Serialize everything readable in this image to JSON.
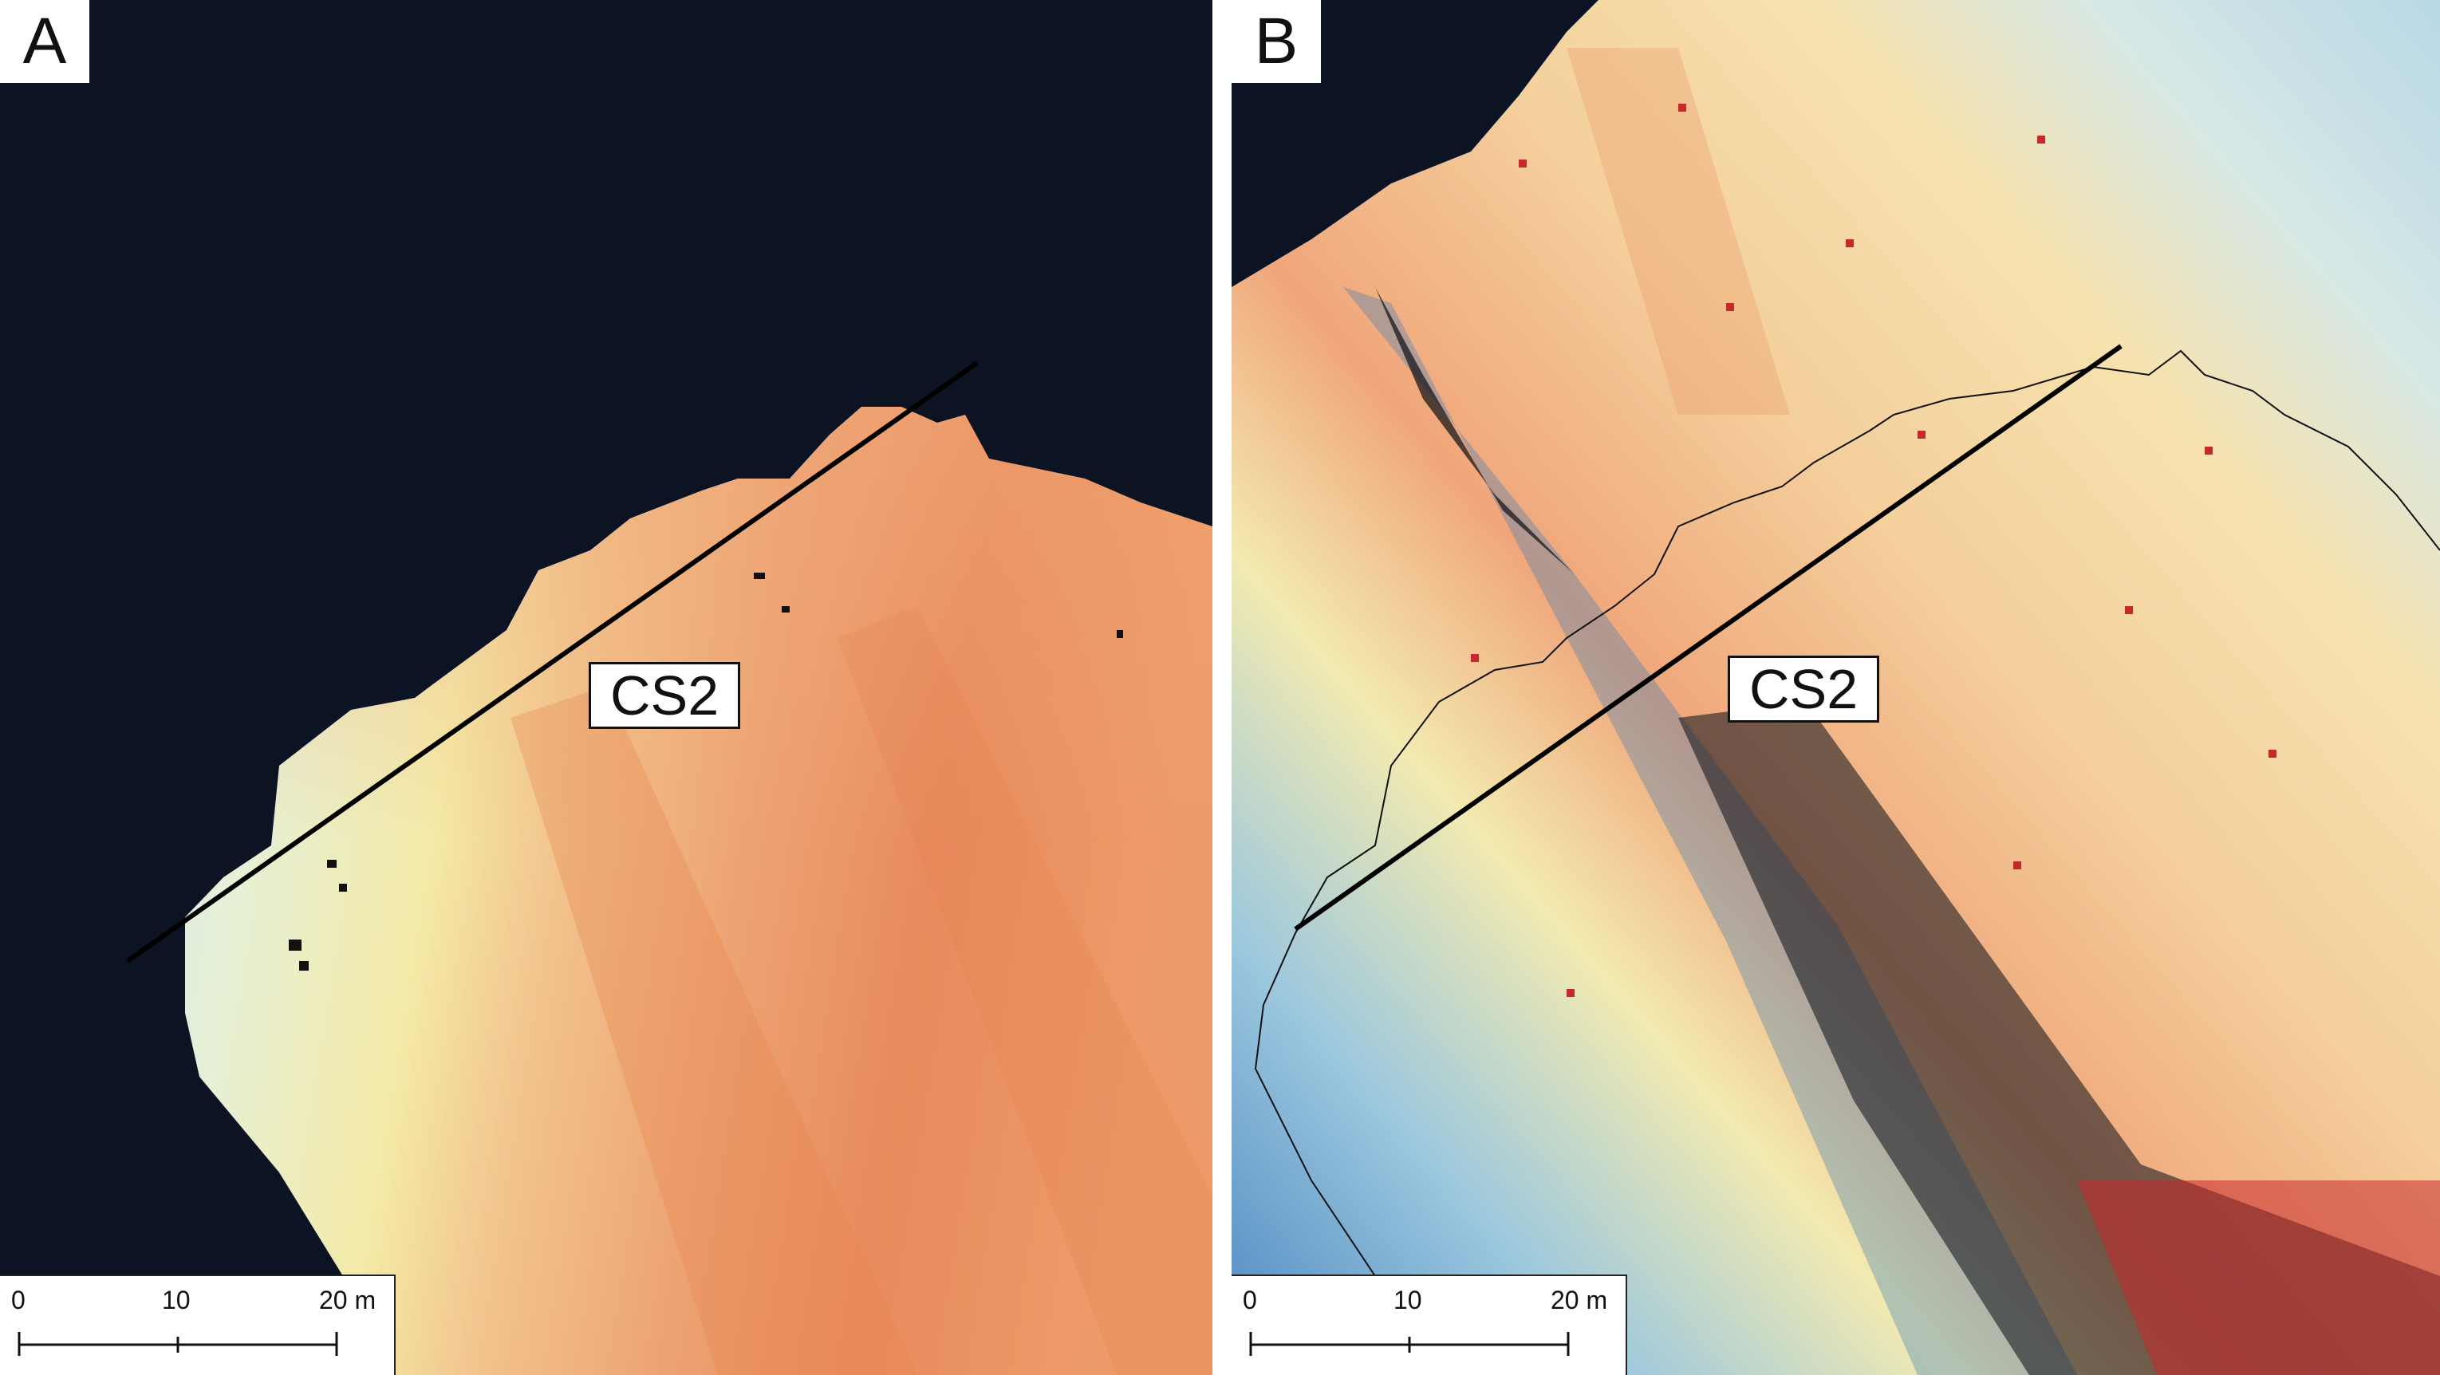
{
  "panels": [
    {
      "letter": "A",
      "cross_section_label": "CS2",
      "scale_bar": {
        "tick_labels": [
          "0",
          "10",
          "20 m"
        ]
      }
    },
    {
      "letter": "B",
      "cross_section_label": "CS2",
      "scale_bar": {
        "tick_labels": [
          "0",
          "10",
          "20 m"
        ]
      }
    }
  ],
  "colors": {
    "background_dark": "#0c1322",
    "high_orange": "#e8895a",
    "mid_peach": "#f3c992",
    "low_pale_yellow": "#f4f1b8",
    "low_blue": "#5a98cc",
    "noise_red": "#c7282a",
    "outline_black": "#111111"
  }
}
